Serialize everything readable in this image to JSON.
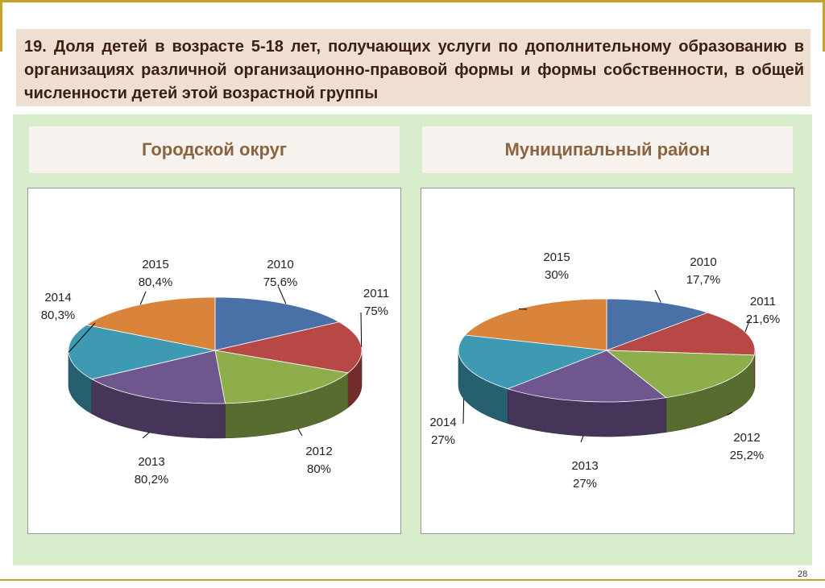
{
  "title": "19. Доля детей в возрасте 5-18 лет, получающих услуги по дополнительному образованию в организациях различной организационно-правовой формы и формы собственности, в общей численности детей этой возрастной группы",
  "page_number": "28",
  "colors": {
    "2010": "#4a70a8",
    "2011": "#b84846",
    "2012": "#8eae4c",
    "2013": "#70568f",
    "2014": "#3e9ab2",
    "2015": "#da843b"
  },
  "chart_data": [
    {
      "type": "pie",
      "title": "Городской округ",
      "categories": [
        "2010",
        "2011",
        "2012",
        "2013",
        "2014",
        "2015"
      ],
      "values": [
        75.6,
        75,
        80,
        80.2,
        80.3,
        80.4
      ],
      "value_labels": [
        "75,6%",
        "75%",
        "80%",
        "80,2%",
        "80,3%",
        "80,4%"
      ]
    },
    {
      "type": "pie",
      "title": "Муниципальный район",
      "categories": [
        "2010",
        "2011",
        "2012",
        "2013",
        "2014",
        "2015"
      ],
      "values": [
        17.7,
        21.6,
        25.2,
        27,
        27,
        30
      ],
      "value_labels": [
        "17,7%",
        "21,6%",
        "25,2%",
        "27%",
        "27%",
        "30%"
      ]
    }
  ]
}
